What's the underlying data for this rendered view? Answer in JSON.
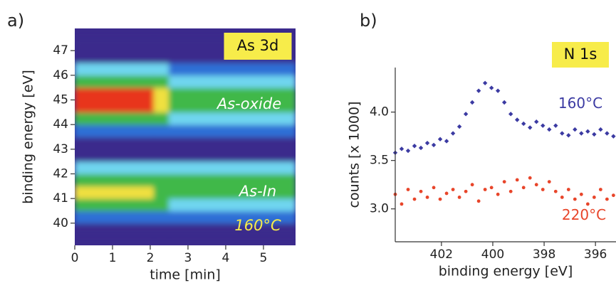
{
  "chart_data": [
    {
      "type": "heatmap",
      "panel_label": "a)",
      "xlabel": "time [min]",
      "ylabel": "binding energy [eV]",
      "xlim": [
        0,
        5.85
      ],
      "ylim": [
        39.1,
        47.9
      ],
      "xticks": [
        0,
        1,
        2,
        3,
        4,
        5
      ],
      "yticks": [
        40,
        41,
        42,
        43,
        44,
        45,
        46,
        47
      ],
      "xbins": [
        0,
        2.1,
        2.5,
        5.85
      ],
      "ybins": [
        39.5,
        40,
        40.5,
        41,
        41.5,
        42,
        42.5,
        43,
        43.5,
        44,
        44.5,
        45,
        45.5,
        46,
        46.5,
        47,
        47.5
      ],
      "colorscale": [
        "#3b2a8c",
        "#2f6fd6",
        "#6fd6f0",
        "#3fb84a",
        "#f0e040",
        "#e8361c"
      ],
      "z": [
        [
          0,
          1,
          3,
          4,
          3,
          2,
          0,
          0,
          1,
          3,
          5,
          5,
          3,
          2,
          0,
          0
        ],
        [
          0,
          1,
          3,
          3,
          3,
          2,
          0,
          0,
          1,
          3,
          4,
          4,
          3,
          2,
          0,
          0
        ],
        [
          0,
          1,
          2,
          3,
          3,
          2,
          0,
          0,
          1,
          2,
          3,
          3,
          2,
          1,
          0,
          0
        ]
      ],
      "annotations": [
        {
          "text": "As 3d",
          "color": "#111111",
          "box": "#f7ec4a"
        },
        {
          "text": "As-oxide",
          "color": "#ffffff"
        },
        {
          "text": "As-In",
          "color": "#ffffff"
        },
        {
          "text": "160°C",
          "color": "#f7ec4a"
        }
      ]
    },
    {
      "type": "scatter",
      "panel_label": "b)",
      "xlabel": "binding energy [eV]",
      "ylabel": "counts [x 1000]",
      "xlim": [
        403.8,
        395.2
      ],
      "ylim": [
        2.66,
        4.46
      ],
      "xticks": [
        402,
        400,
        398,
        396
      ],
      "yticks": [
        {
          "value": 3,
          "label": "3.0"
        },
        {
          "value": 3.5,
          "label": "3.5"
        },
        {
          "value": 4,
          "label": "4.0"
        }
      ],
      "x": [
        403.8,
        403.55,
        403.3,
        403.05,
        402.8,
        402.55,
        402.3,
        402.05,
        401.8,
        401.55,
        401.3,
        401.05,
        400.8,
        400.55,
        400.3,
        400.05,
        399.8,
        399.55,
        399.3,
        399.05,
        398.8,
        398.55,
        398.3,
        398.05,
        397.8,
        397.55,
        397.3,
        397.05,
        396.8,
        396.55,
        396.3,
        396.05,
        395.8,
        395.55,
        395.3
      ],
      "series": [
        {
          "name": "160°C",
          "color": "#3b3aa2",
          "marker": "diamond",
          "values": [
            3.58,
            3.62,
            3.6,
            3.65,
            3.63,
            3.68,
            3.66,
            3.72,
            3.7,
            3.78,
            3.85,
            3.98,
            4.1,
            4.22,
            4.3,
            4.25,
            4.22,
            4.1,
            3.98,
            3.92,
            3.88,
            3.84,
            3.9,
            3.86,
            3.82,
            3.86,
            3.78,
            3.76,
            3.82,
            3.78,
            3.8,
            3.77,
            3.82,
            3.78,
            3.75
          ]
        },
        {
          "name": "220°C",
          "color": "#e8452a",
          "marker": "circle",
          "values": [
            3.15,
            3.05,
            3.2,
            3.1,
            3.18,
            3.12,
            3.22,
            3.1,
            3.16,
            3.2,
            3.12,
            3.18,
            3.25,
            3.08,
            3.2,
            3.22,
            3.15,
            3.28,
            3.18,
            3.3,
            3.22,
            3.32,
            3.25,
            3.2,
            3.28,
            3.18,
            3.12,
            3.2,
            3.1,
            3.15,
            3.05,
            3.12,
            3.2,
            3.1,
            3.14
          ]
        }
      ],
      "annotations": [
        {
          "text": "N 1s",
          "color": "#111111",
          "box": "#f7ec4a"
        }
      ]
    }
  ]
}
